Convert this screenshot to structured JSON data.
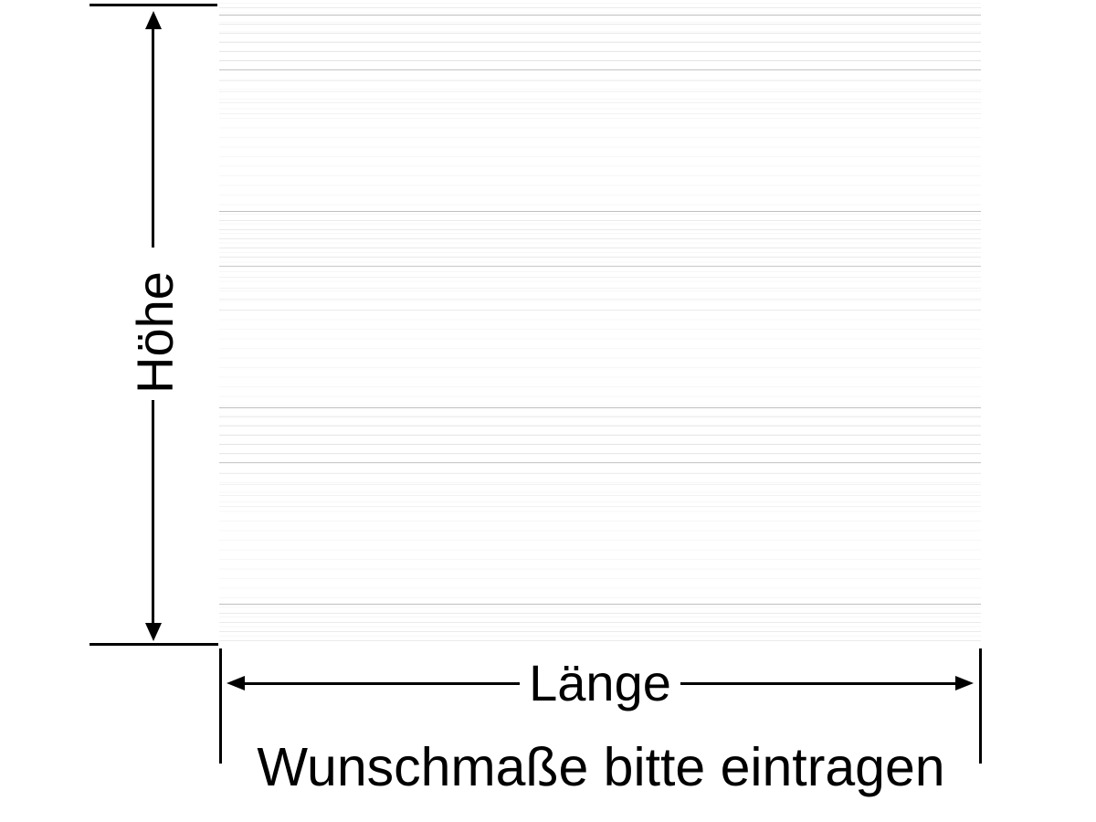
{
  "diagram": {
    "title": "dimension-entry-diagram",
    "panel": {
      "description": "ribbed-panel-preview",
      "texture": "horizontal-ribs"
    },
    "height": {
      "label": "Höhe"
    },
    "length": {
      "label": "Länge"
    },
    "instruction": "Wunschmaße bitte eintragen",
    "colors": {
      "background": "#ffffff",
      "line": "#000000",
      "rib_strong": "#bfbfbf",
      "rib_faint": "#f2f2f2"
    }
  }
}
